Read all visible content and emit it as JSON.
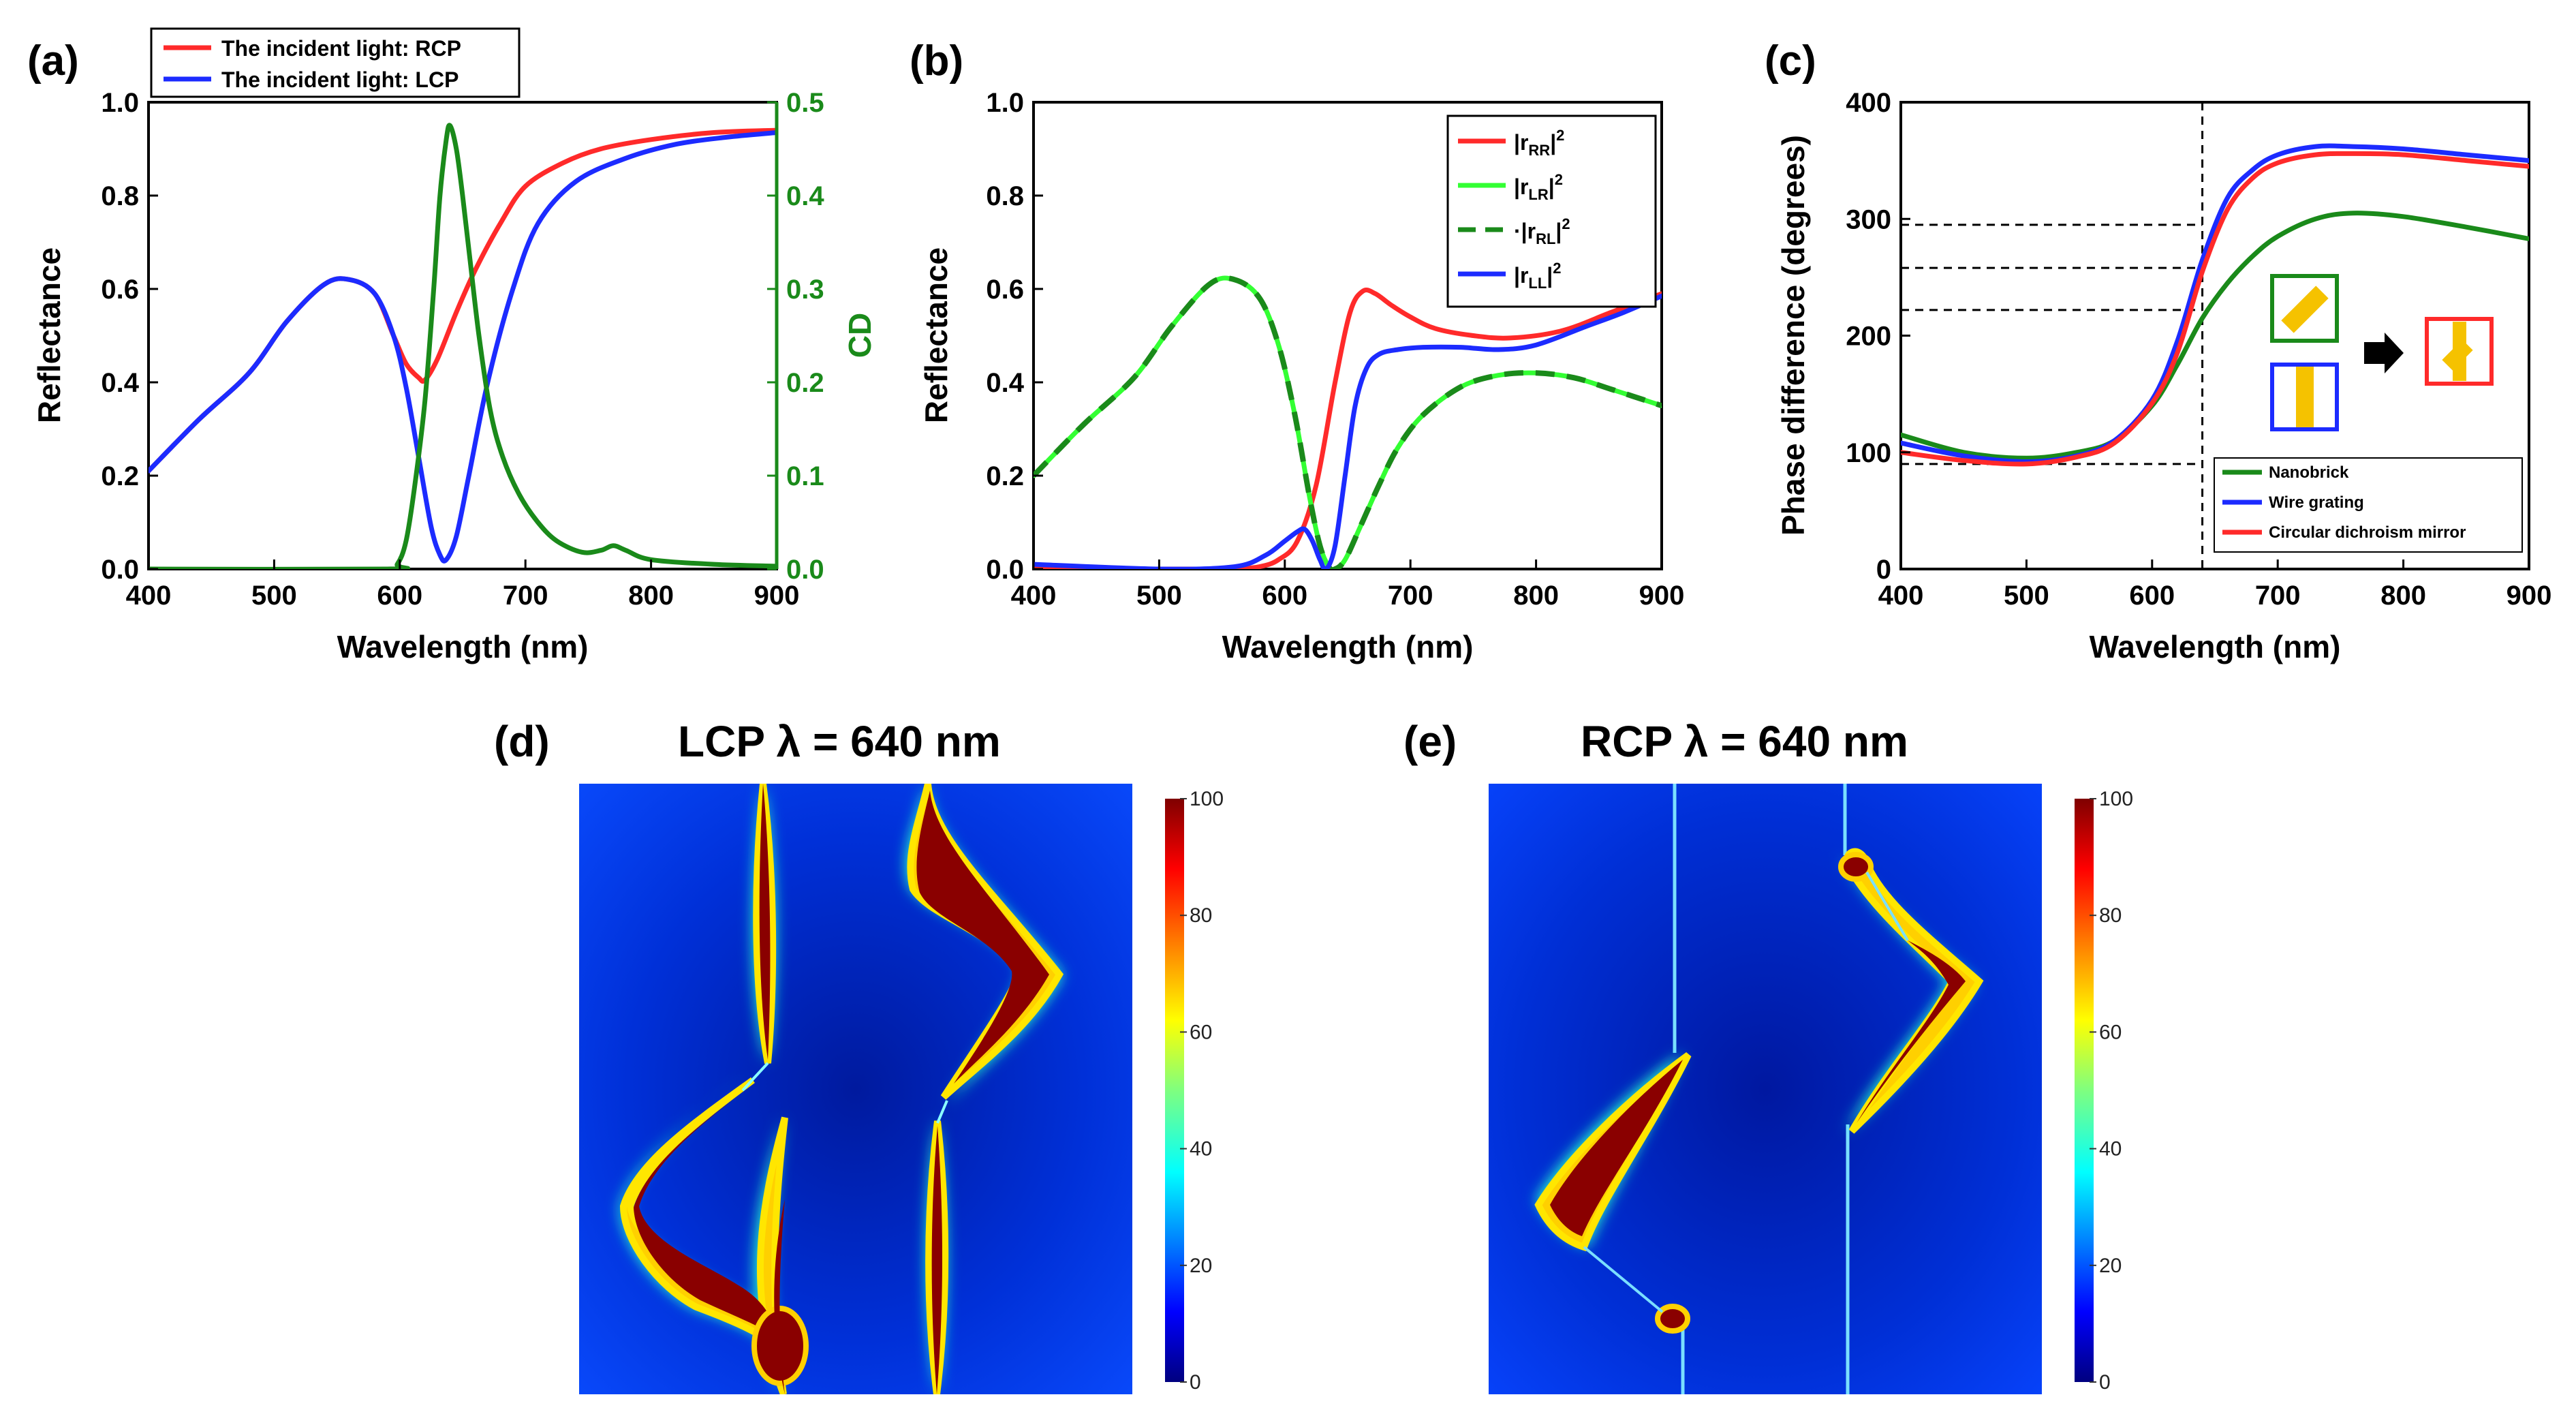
{
  "colors": {
    "red": "#ff2a2a",
    "blue": "#1c2bff",
    "green": "#1a8a1a",
    "light_green": "#33ff33",
    "cd_axis": "#1a8a1a",
    "gold": "#f5c200"
  },
  "chart_data": [
    {
      "id": "a",
      "type": "line",
      "panel_label": "(a)",
      "xlabel": "Wavelength (nm)",
      "ylabel": "Reflectance",
      "y2label": "CD",
      "xlim": [
        400,
        900
      ],
      "ylim": [
        0,
        1.0
      ],
      "y2lim": [
        0,
        0.5
      ],
      "xticks": [
        "400",
        "500",
        "600",
        "700",
        "800",
        "900"
      ],
      "yticks": [
        "0.0",
        "0.2",
        "0.4",
        "0.6",
        "0.8",
        "1.0"
      ],
      "y2ticks": [
        "0.0",
        "0.1",
        "0.2",
        "0.3",
        "0.4",
        "0.5"
      ],
      "legend": [
        "The incident light: RCP",
        "The incident light: LCP"
      ],
      "series": [
        {
          "name": "The incident light: RCP",
          "color": "red",
          "axis": "left",
          "x": [
            400,
            440,
            480,
            510,
            540,
            560,
            580,
            595,
            605,
            615,
            620,
            630,
            645,
            660,
            680,
            700,
            730,
            760,
            800,
            850,
            900
          ],
          "y": [
            0.21,
            0.32,
            0.42,
            0.53,
            0.61,
            0.62,
            0.59,
            0.5,
            0.44,
            0.41,
            0.405,
            0.45,
            0.55,
            0.64,
            0.74,
            0.82,
            0.87,
            0.9,
            0.92,
            0.935,
            0.94
          ]
        },
        {
          "name": "The incident light: LCP",
          "color": "blue",
          "axis": "left",
          "x": [
            400,
            440,
            480,
            510,
            540,
            560,
            580,
            595,
            605,
            615,
            625,
            632,
            637,
            645,
            655,
            670,
            690,
            710,
            740,
            780,
            820,
            860,
            900
          ],
          "y": [
            0.21,
            0.32,
            0.42,
            0.53,
            0.61,
            0.62,
            0.59,
            0.5,
            0.39,
            0.24,
            0.09,
            0.03,
            0.02,
            0.07,
            0.2,
            0.4,
            0.6,
            0.74,
            0.83,
            0.88,
            0.91,
            0.925,
            0.935
          ]
        },
        {
          "name": "CD",
          "color": "green",
          "axis": "right",
          "x": [
            400,
            590,
            598,
            605,
            612,
            620,
            627,
            632,
            637,
            640,
            645,
            650,
            656,
            663,
            672,
            682,
            695,
            710,
            725,
            745,
            760,
            770,
            780,
            800,
            850,
            900
          ],
          "y": [
            0.0,
            0.0,
            0.005,
            0.03,
            0.09,
            0.18,
            0.3,
            0.4,
            0.46,
            0.475,
            0.45,
            0.4,
            0.33,
            0.25,
            0.17,
            0.12,
            0.08,
            0.05,
            0.03,
            0.018,
            0.02,
            0.025,
            0.02,
            0.01,
            0.005,
            0.003
          ]
        }
      ]
    },
    {
      "id": "b",
      "type": "line",
      "panel_label": "(b)",
      "xlabel": "Wavelength (nm)",
      "ylabel": "Reflectance",
      "xlim": [
        400,
        900
      ],
      "ylim": [
        0,
        1.0
      ],
      "xticks": [
        "400",
        "500",
        "600",
        "700",
        "800",
        "900"
      ],
      "yticks": [
        "0.0",
        "0.2",
        "0.4",
        "0.6",
        "0.8",
        "1.0"
      ],
      "legend": [
        {
          "base": "|r",
          "sub": "RR",
          "close": "|",
          "sup": "2"
        },
        {
          "base": "|r",
          "sub": "LR",
          "close": "|",
          "sup": "2"
        },
        {
          "base": "·|r",
          "sub": "RL",
          "close": "|",
          "sup": "2"
        },
        {
          "base": "|r",
          "sub": "LL",
          "close": "|",
          "sup": "2"
        }
      ],
      "series": [
        {
          "name": "rRR",
          "color": "red",
          "x": [
            400,
            440,
            480,
            510,
            540,
            560,
            580,
            595,
            610,
            625,
            640,
            652,
            662,
            672,
            685,
            700,
            720,
            750,
            780,
            820,
            860,
            900
          ],
          "y": [
            0.0,
            0.0,
            0.0,
            0.0,
            0.0,
            0.0,
            0.005,
            0.02,
            0.06,
            0.18,
            0.4,
            0.55,
            0.595,
            0.59,
            0.565,
            0.54,
            0.515,
            0.5,
            0.495,
            0.51,
            0.55,
            0.59
          ]
        },
        {
          "name": "rLR",
          "color": "light_green",
          "x": [
            400,
            440,
            480,
            510,
            540,
            560,
            580,
            595,
            608,
            620,
            628,
            635,
            640,
            648,
            660,
            675,
            690,
            710,
            740,
            770,
            800,
            830,
            860,
            900
          ],
          "y": [
            0.2,
            0.31,
            0.41,
            0.52,
            0.61,
            0.62,
            0.58,
            0.48,
            0.33,
            0.15,
            0.05,
            0.005,
            0.0,
            0.02,
            0.09,
            0.18,
            0.26,
            0.33,
            0.39,
            0.415,
            0.42,
            0.41,
            0.385,
            0.35
          ]
        },
        {
          "name": "rRL",
          "color": "green",
          "dashed": true,
          "x": [
            400,
            440,
            480,
            510,
            540,
            560,
            580,
            595,
            608,
            620,
            628,
            635,
            640,
            648,
            660,
            675,
            690,
            710,
            740,
            770,
            800,
            830,
            860,
            900
          ],
          "y": [
            0.2,
            0.31,
            0.41,
            0.52,
            0.61,
            0.62,
            0.58,
            0.48,
            0.33,
            0.15,
            0.05,
            0.005,
            0.0,
            0.02,
            0.09,
            0.18,
            0.26,
            0.33,
            0.39,
            0.415,
            0.42,
            0.41,
            0.385,
            0.35
          ]
        },
        {
          "name": "rLL",
          "color": "blue",
          "x": [
            400,
            500,
            560,
            585,
            600,
            610,
            616,
            622,
            628,
            633,
            640,
            648,
            656,
            665,
            675,
            690,
            710,
            740,
            770,
            800,
            840,
            870,
            900
          ],
          "y": [
            0.01,
            0.0,
            0.005,
            0.03,
            0.06,
            0.08,
            0.085,
            0.06,
            0.02,
            0.0,
            0.05,
            0.2,
            0.35,
            0.43,
            0.46,
            0.47,
            0.475,
            0.475,
            0.47,
            0.48,
            0.52,
            0.55,
            0.585
          ]
        }
      ]
    },
    {
      "id": "c",
      "type": "line",
      "panel_label": "(c)",
      "xlabel": "Wavelength (nm)",
      "ylabel": "Phase difference (degrees)",
      "xlim": [
        400,
        900
      ],
      "ylim": [
        0,
        400
      ],
      "xticks": [
        "400",
        "500",
        "600",
        "700",
        "800",
        "900"
      ],
      "yticks": [
        "0",
        "100",
        "200",
        "300",
        "400"
      ],
      "legend": [
        "Nanobrick",
        "Wire grating",
        "Circular dichroism mirror"
      ],
      "reference_x": 640,
      "reference_y": [
        90,
        222,
        258,
        295
      ],
      "series": [
        {
          "name": "Nanobrick",
          "color": "green",
          "x": [
            400,
            450,
            500,
            540,
            570,
            600,
            620,
            640,
            660,
            680,
            700,
            730,
            760,
            800,
            850,
            900
          ],
          "y": [
            115,
            100,
            95,
            100,
            110,
            140,
            175,
            215,
            245,
            268,
            285,
            300,
            305,
            302,
            293,
            283
          ]
        },
        {
          "name": "Wire grating",
          "color": "blue",
          "x": [
            400,
            450,
            500,
            540,
            570,
            600,
            620,
            640,
            660,
            680,
            700,
            730,
            760,
            800,
            850,
            900
          ],
          "y": [
            108,
            97,
            92,
            97,
            110,
            145,
            195,
            265,
            318,
            342,
            355,
            362,
            362,
            360,
            355,
            350
          ]
        },
        {
          "name": "Circular dichroism mirror",
          "color": "red",
          "x": [
            400,
            450,
            500,
            540,
            570,
            600,
            620,
            640,
            660,
            680,
            700,
            730,
            760,
            800,
            850,
            900
          ],
          "y": [
            100,
            93,
            90,
            96,
            108,
            142,
            185,
            255,
            308,
            335,
            348,
            355,
            356,
            355,
            350,
            345
          ]
        }
      ]
    },
    {
      "id": "d",
      "type": "heatmap",
      "panel_label": "(d)",
      "title": "LCP λ = 640 nm",
      "colorbar_ticks": [
        "100",
        "80",
        "60",
        "40",
        "20",
        "0"
      ]
    },
    {
      "id": "e",
      "type": "heatmap",
      "panel_label": "(e)",
      "title": "RCP λ = 640 nm",
      "colorbar_ticks": [
        "100",
        "80",
        "60",
        "40",
        "20",
        "0"
      ]
    }
  ]
}
